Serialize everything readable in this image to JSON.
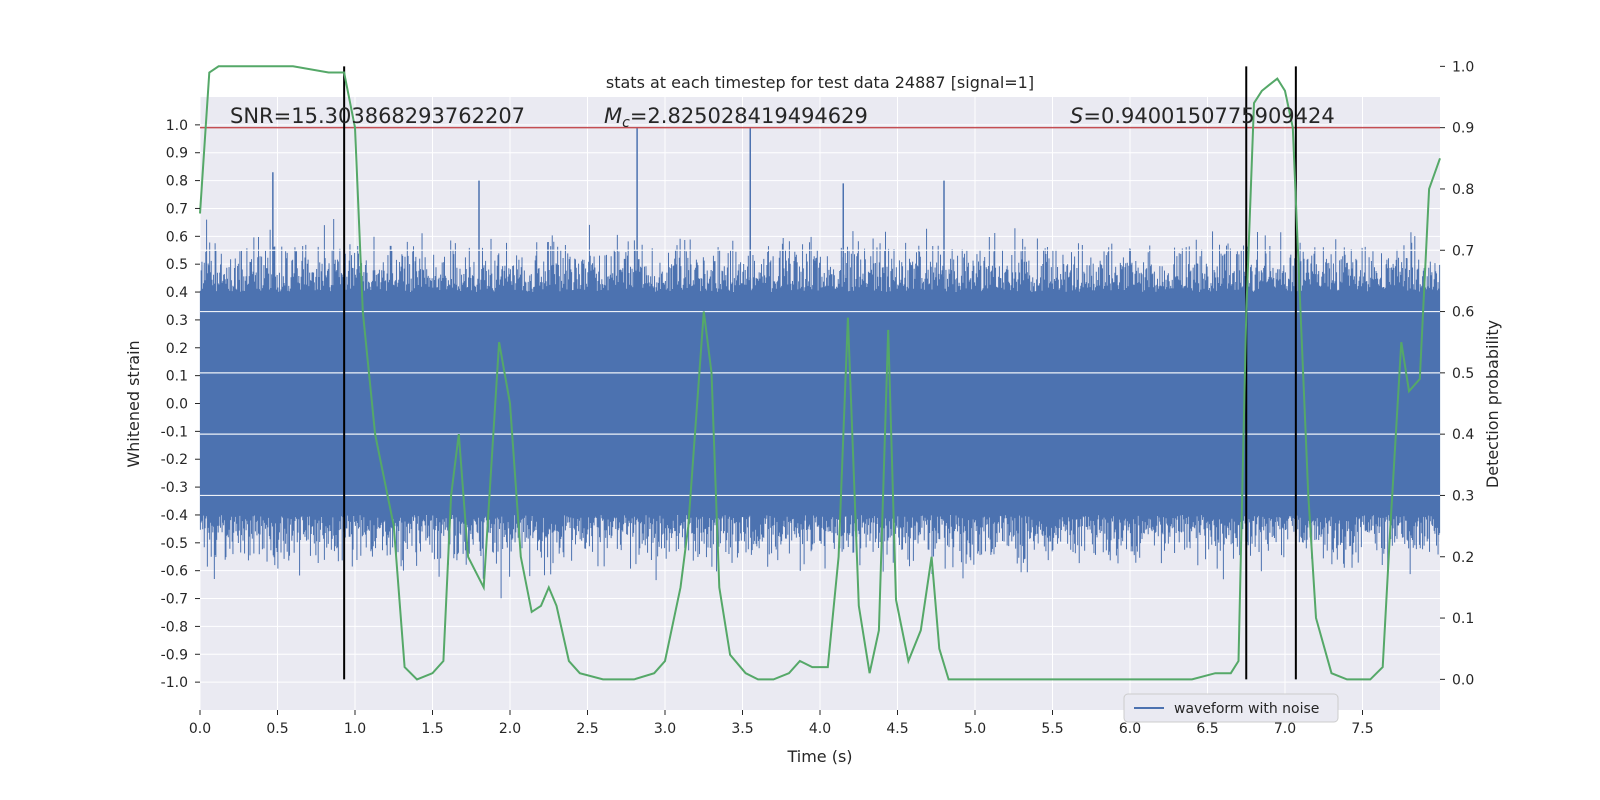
{
  "chart_data": {
    "type": "line",
    "title": "stats at each timestep for test data 24887 [signal=1]",
    "xlabel": "Time (s)",
    "ylabel": "Whitened strain",
    "y2label": "Detection probability",
    "xlim": [
      0,
      8
    ],
    "ylim": [
      -1.1,
      1.1
    ],
    "y2lim": [
      -0.05,
      0.95
    ],
    "xticks": [
      "0.0",
      "0.5",
      "1.0",
      "1.5",
      "2.0",
      "2.5",
      "3.0",
      "3.5",
      "4.0",
      "4.5",
      "5.0",
      "5.5",
      "6.0",
      "6.5",
      "7.0",
      "7.5"
    ],
    "yticks": [
      "1.0",
      "0.9",
      "0.8",
      "0.7",
      "0.6",
      "0.5",
      "0.4",
      "0.3",
      "0.2",
      "0.1",
      "0.0",
      "-0.1",
      "-0.2",
      "-0.3",
      "-0.4",
      "-0.5",
      "-0.6",
      "-0.7",
      "-0.8",
      "-0.9",
      "-1.0"
    ],
    "y2ticks": [
      "1.0",
      "0.9",
      "0.8",
      "0.7",
      "0.6",
      "0.5",
      "0.4",
      "0.3",
      "0.2",
      "0.1",
      "0.0"
    ],
    "annotations": {
      "snr": "SNR=15.303868293762207",
      "mc_symbol": "M",
      "mc_sub": "c",
      "mc_value": "=2.825028419494629",
      "s_symbol": "S",
      "s_value": "=0.9400150775909424"
    },
    "legend": {
      "label": "waveform with noise",
      "location": "lower-right"
    },
    "threshold": {
      "y2": 0.9,
      "color": "#c44e52"
    },
    "vlines_x": [
      0.93,
      6.75,
      7.07
    ],
    "series": [
      {
        "name": "waveform with noise",
        "axis": "left",
        "color": "#4c72b0",
        "kind": "noise-band",
        "envelope": 0.4,
        "spikes": [
          0.83,
          0.8,
          0.99,
          0.99,
          0.79,
          0.8
        ]
      },
      {
        "name": "detection probability",
        "axis": "right",
        "color": "#55a868",
        "x": [
          0.0,
          0.06,
          0.12,
          0.3,
          0.6,
          0.83,
          0.93,
          1.0,
          1.05,
          1.13,
          1.25,
          1.32,
          1.4,
          1.5,
          1.57,
          1.62,
          1.67,
          1.73,
          1.83,
          1.93,
          2.0,
          2.07,
          2.14,
          2.2,
          2.25,
          2.3,
          2.38,
          2.45,
          2.6,
          2.8,
          2.93,
          3.0,
          3.1,
          3.15,
          3.25,
          3.3,
          3.35,
          3.42,
          3.52,
          3.6,
          3.7,
          3.8,
          3.87,
          3.95,
          4.05,
          4.12,
          4.18,
          4.25,
          4.32,
          4.38,
          4.44,
          4.49,
          4.57,
          4.65,
          4.72,
          4.77,
          4.83,
          4.9,
          5.3,
          6.0,
          6.4,
          6.55,
          6.65,
          6.7,
          6.75,
          6.8,
          6.85,
          6.9,
          6.95,
          7.0,
          7.05,
          7.1,
          7.15,
          7.2,
          7.3,
          7.4,
          7.55,
          7.63,
          7.68,
          7.75,
          7.8,
          7.87,
          7.93,
          8.0
        ],
        "values": [
          0.76,
          0.99,
          1.0,
          1.0,
          1.0,
          0.99,
          0.99,
          0.9,
          0.6,
          0.4,
          0.25,
          0.02,
          0.0,
          0.01,
          0.03,
          0.3,
          0.4,
          0.2,
          0.15,
          0.55,
          0.45,
          0.2,
          0.11,
          0.12,
          0.15,
          0.12,
          0.03,
          0.01,
          0.0,
          0.0,
          0.01,
          0.03,
          0.15,
          0.25,
          0.6,
          0.5,
          0.15,
          0.04,
          0.01,
          0.0,
          0.0,
          0.01,
          0.03,
          0.02,
          0.02,
          0.2,
          0.59,
          0.12,
          0.01,
          0.08,
          0.57,
          0.13,
          0.03,
          0.08,
          0.2,
          0.05,
          0.0,
          0.0,
          0.0,
          0.0,
          0.0,
          0.01,
          0.01,
          0.03,
          0.6,
          0.94,
          0.96,
          0.97,
          0.98,
          0.96,
          0.9,
          0.6,
          0.3,
          0.1,
          0.01,
          0.0,
          0.0,
          0.02,
          0.25,
          0.55,
          0.47,
          0.49,
          0.8,
          0.85
        ]
      }
    ]
  }
}
